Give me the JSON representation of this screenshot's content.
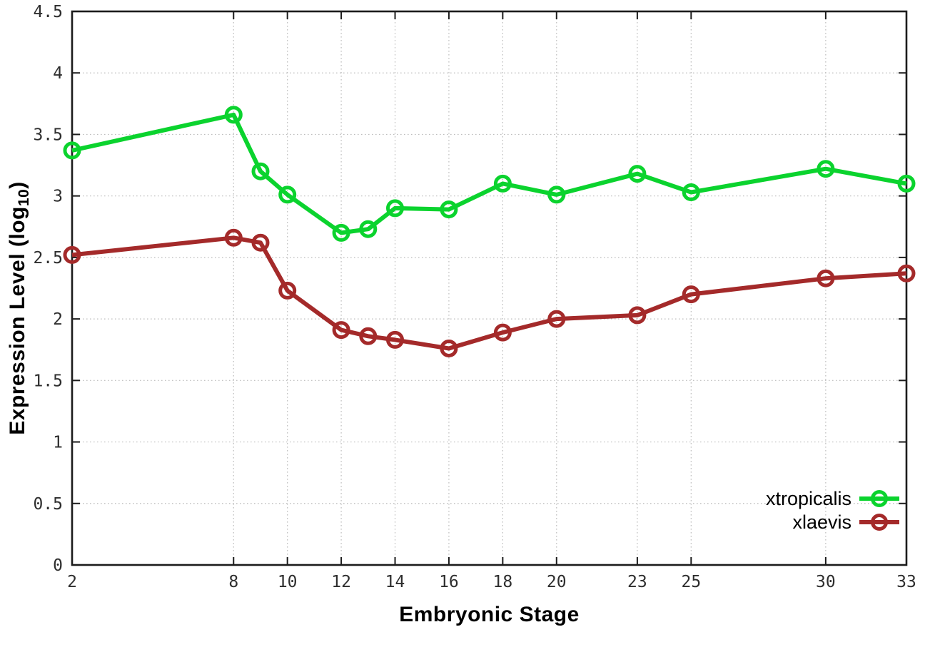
{
  "chart_data": {
    "type": "line",
    "xlabel": "Embryonic Stage",
    "ylabel": "Expression Level (log10)",
    "ylabel_parts": {
      "main": "Expression Level (log",
      "sub": "10",
      "close": ")"
    },
    "xlim": [
      2,
      33
    ],
    "ylim": [
      0,
      4.5
    ],
    "grid": true,
    "legend_position": "bottom-right",
    "x_ticks": [
      {
        "v": 2,
        "label": "2"
      },
      {
        "v": 8,
        "label": "8"
      },
      {
        "v": 10,
        "label": "10"
      },
      {
        "v": 12,
        "label": "12"
      },
      {
        "v": 14,
        "label": "14"
      },
      {
        "v": 16,
        "label": "16"
      },
      {
        "v": 18,
        "label": "18"
      },
      {
        "v": 20,
        "label": "20"
      },
      {
        "v": 23,
        "label": "23"
      },
      {
        "v": 25,
        "label": "25"
      },
      {
        "v": 30,
        "label": "30"
      },
      {
        "v": 33,
        "label": "33"
      }
    ],
    "y_ticks": [
      {
        "v": 0,
        "label": "0"
      },
      {
        "v": 0.5,
        "label": "0.5"
      },
      {
        "v": 1,
        "label": "1"
      },
      {
        "v": 1.5,
        "label": "1.5"
      },
      {
        "v": 2,
        "label": "2"
      },
      {
        "v": 2.5,
        "label": "2.5"
      },
      {
        "v": 3,
        "label": "3"
      },
      {
        "v": 3.5,
        "label": "3.5"
      },
      {
        "v": 4,
        "label": "4"
      },
      {
        "v": 4.5,
        "label": "4.5"
      }
    ],
    "x": [
      2,
      8,
      9,
      10,
      12,
      13,
      14,
      16,
      18,
      20,
      23,
      25,
      30,
      33
    ],
    "series": [
      {
        "name": "xtropicalis",
        "color": "#0bd32e",
        "values": [
          3.37,
          3.66,
          3.2,
          3.01,
          2.7,
          2.73,
          2.9,
          2.89,
          3.1,
          3.01,
          3.18,
          3.03,
          3.22,
          3.1
        ]
      },
      {
        "name": "xlaevis",
        "color": "#a42a2a",
        "values": [
          2.52,
          2.66,
          2.62,
          2.23,
          1.91,
          1.86,
          1.83,
          1.76,
          1.89,
          2.0,
          2.03,
          2.2,
          2.33,
          2.37
        ]
      }
    ]
  }
}
